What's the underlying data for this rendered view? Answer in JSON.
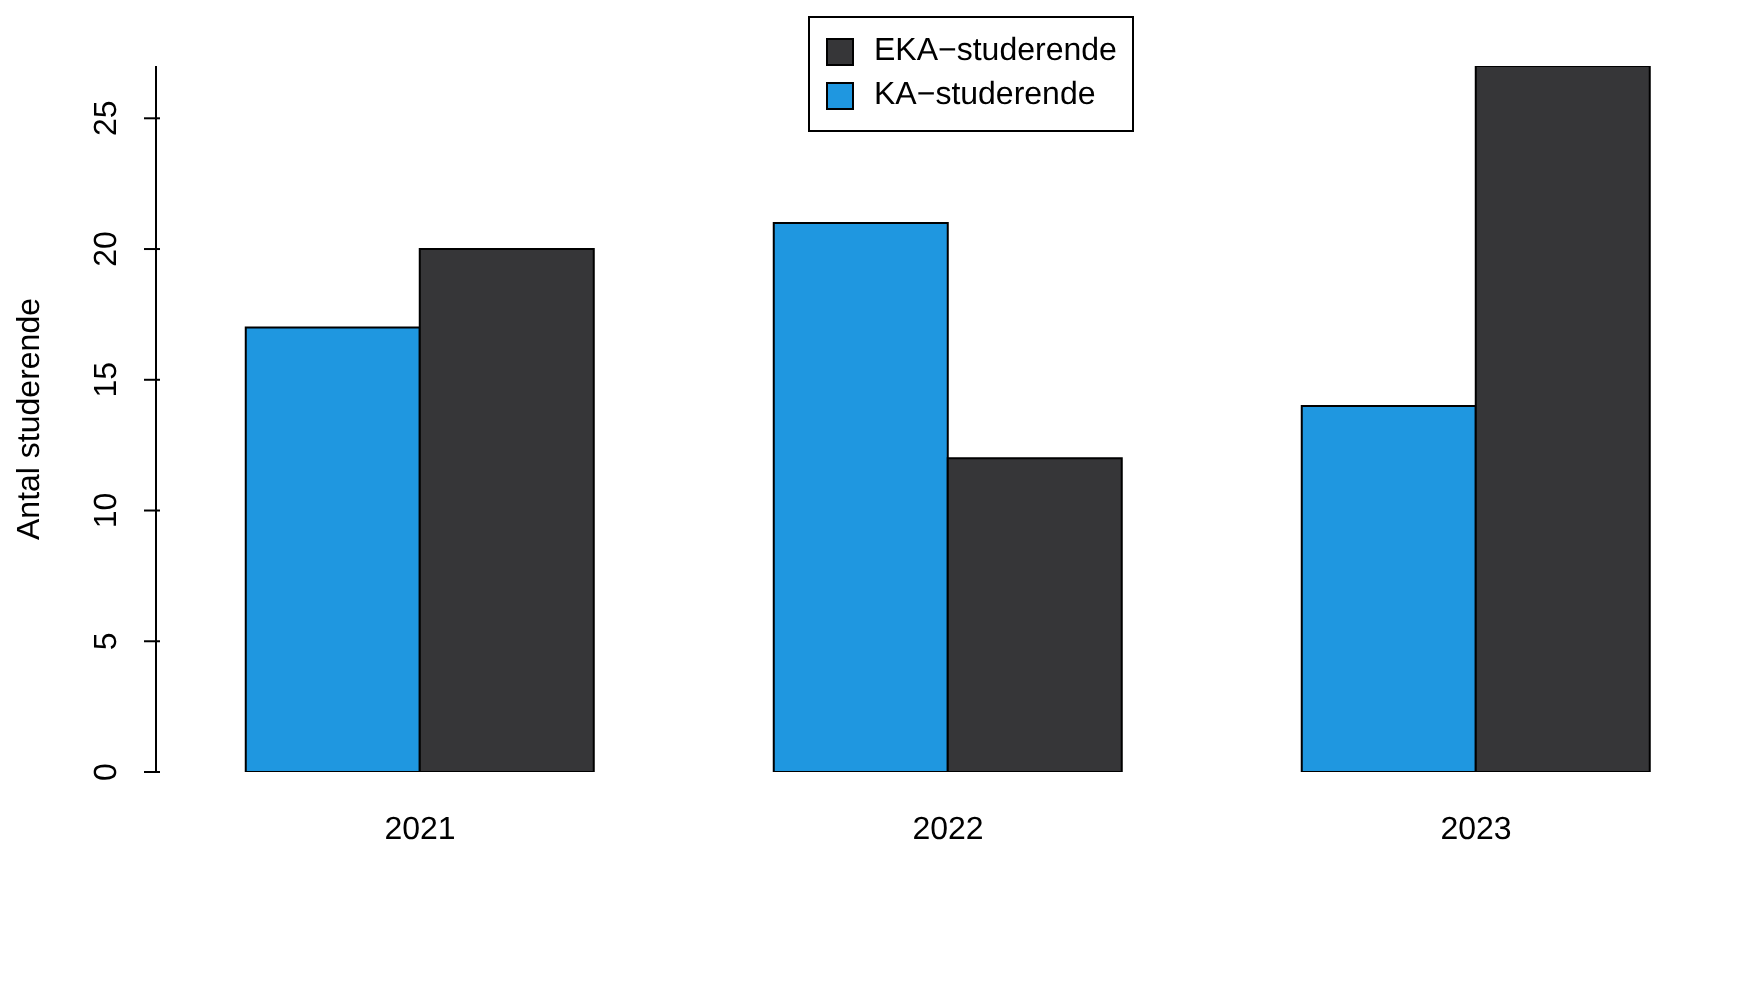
{
  "chart_data": {
    "type": "bar",
    "categories": [
      "2021",
      "2022",
      "2023"
    ],
    "series": [
      {
        "name": "KA−studerende",
        "color": "#1f97e0",
        "values": [
          17,
          21,
          14
        ]
      },
      {
        "name": "EKA−studerende",
        "color": "#363638",
        "values": [
          20,
          12,
          27
        ]
      }
    ],
    "ylabel": "Antal studerende",
    "ylim": [
      0,
      27
    ],
    "yticks": [
      0,
      5,
      10,
      15,
      20,
      25
    ],
    "grid": false,
    "legend": "top"
  }
}
